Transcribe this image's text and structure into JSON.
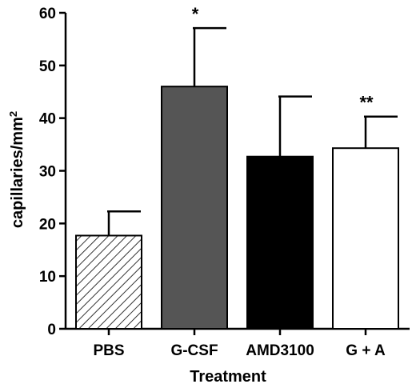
{
  "chart_data": {
    "type": "bar",
    "title": "",
    "xlabel": "Treatment",
    "ylabel": "capillaries/mm",
    "ylabel_superscript": "2",
    "ylim": [
      0,
      60
    ],
    "yticks": [
      0,
      10,
      20,
      30,
      40,
      50,
      60
    ],
    "categories": [
      "PBS",
      "G-CSF",
      "AMD3100",
      "G + A"
    ],
    "values": [
      17.7,
      46.0,
      32.7,
      34.3
    ],
    "errors": [
      4.6,
      11.1,
      11.4,
      6.0
    ],
    "significance": [
      "",
      "*",
      "",
      "**"
    ],
    "fills": [
      "hatched",
      "#555555",
      "#000000",
      "#ffffff"
    ],
    "grid": false,
    "legend": "none"
  }
}
